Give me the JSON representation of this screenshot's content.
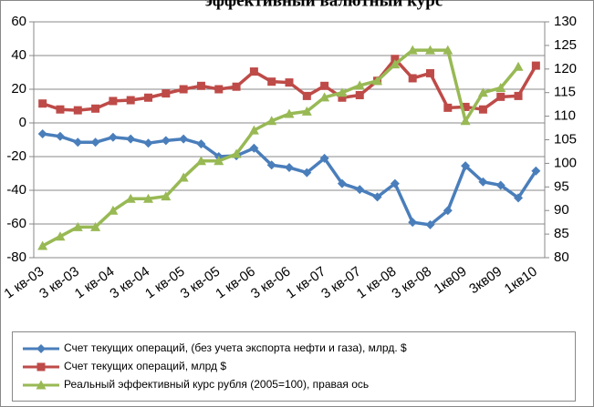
{
  "chart_data": {
    "type": "line",
    "title": "эффективный валютный курс",
    "categories": [
      "1 кв-03",
      null,
      "3 кв-03",
      null,
      "1 кв-04",
      null,
      "3 кв-04",
      null,
      "1 кв-05",
      null,
      "3 кв-05",
      null,
      "1 кв-06",
      null,
      "3 кв-06",
      null,
      "1 кв-07",
      null,
      "3 кв-07",
      null,
      "1 кв-08",
      null,
      "3 кв-08",
      null,
      "1кв09",
      null,
      "3кв09",
      null,
      "1кв10"
    ],
    "series": [
      {
        "name": "Счет текущих операций, (без учета экспорта нефти и газа), млрд. $",
        "color": "#4a7ebb",
        "marker": "diamond",
        "values": [
          -6.5,
          -8,
          -11.5,
          -11.5,
          -8.5,
          -9.5,
          -12,
          -10.5,
          -9.5,
          -12.5,
          -20,
          -19.5,
          -15,
          -25,
          -26.5,
          -29.5,
          -21,
          -36,
          -39.5,
          -44,
          -36,
          -59,
          -60.5,
          -52,
          -25.5,
          -35,
          -37,
          -44.5,
          -28.5
        ]
      },
      {
        "name": "Счет текущих операций, млрд $",
        "color": "#be4b48",
        "marker": "square",
        "values": [
          11.5,
          8,
          7.5,
          8.5,
          13,
          13.5,
          15,
          17.5,
          20,
          22,
          20,
          21.5,
          30.5,
          24.5,
          24,
          16,
          22,
          15,
          16.5,
          25,
          38,
          26.5,
          29.5,
          9,
          9.5,
          8,
          15.5,
          16,
          34
        ]
      },
      {
        "name": "Реальный эффективный курс рубля (2005=100), правая ось",
        "color": "#98b954",
        "marker": "triangle",
        "axis": "y2",
        "values": [
          82.5,
          84.5,
          86.5,
          86.5,
          90,
          92.5,
          92.5,
          93,
          97,
          100.5,
          100.5,
          102,
          107,
          109,
          110.5,
          111,
          114,
          115,
          116.5,
          117.5,
          121,
          124,
          124,
          124,
          109,
          115,
          116,
          120.5,
          null
        ]
      }
    ],
    "ylim": [
      -80,
      60
    ],
    "yticks": [
      -80,
      -60,
      -40,
      -20,
      0,
      20,
      40,
      60
    ],
    "y2lim": [
      80,
      130
    ],
    "y2ticks": [
      80,
      85,
      90,
      95,
      100,
      105,
      110,
      115,
      120,
      125,
      130
    ],
    "grid": true,
    "legend": "bottom"
  }
}
